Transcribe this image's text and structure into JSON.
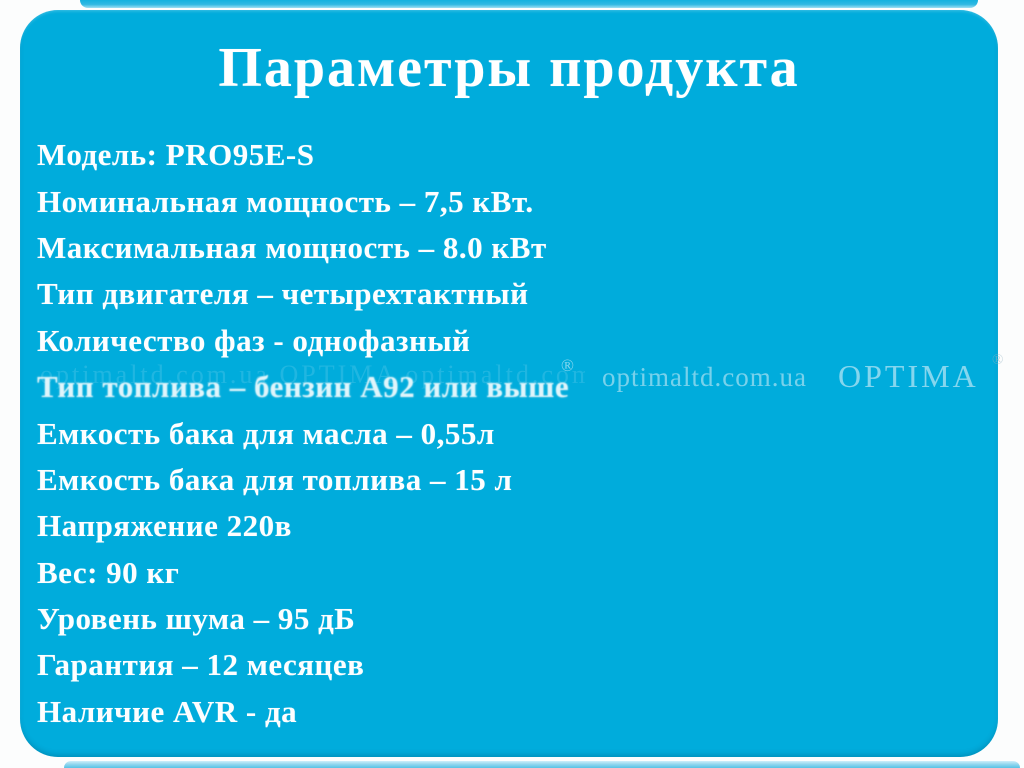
{
  "slide": {
    "title": "Параметры продукта",
    "specs": [
      "Модель: PRO95E-S",
      "Номинальная мощность – 7,5 кВт.",
      "Максимальная мощность – 8.0 кВт",
      "Тип двигателя – четырехтактный",
      "Количество фаз - однофазный",
      "Тип топлива – бензин А92 или выше",
      "Емкость бака для масла – 0,55л",
      "Емкость бака для топлива – 15 л",
      "Напряжение 220в",
      "Вес: 90 кг",
      "Уровень шума – 95 дБ",
      "Гарантия – 12 месяцев",
      "Наличие AVR - да"
    ],
    "watermark": {
      "tile": "optimaltd.com.ua OPTIMA optimaltd.com.ua",
      "site": "optimaltd.com.ua",
      "brand": "OPTIMA",
      "reg_mark": "®"
    }
  },
  "colors": {
    "panel": "#00ACDC",
    "page_bg": "#FCFDFD",
    "text": "#FFFFFF"
  }
}
